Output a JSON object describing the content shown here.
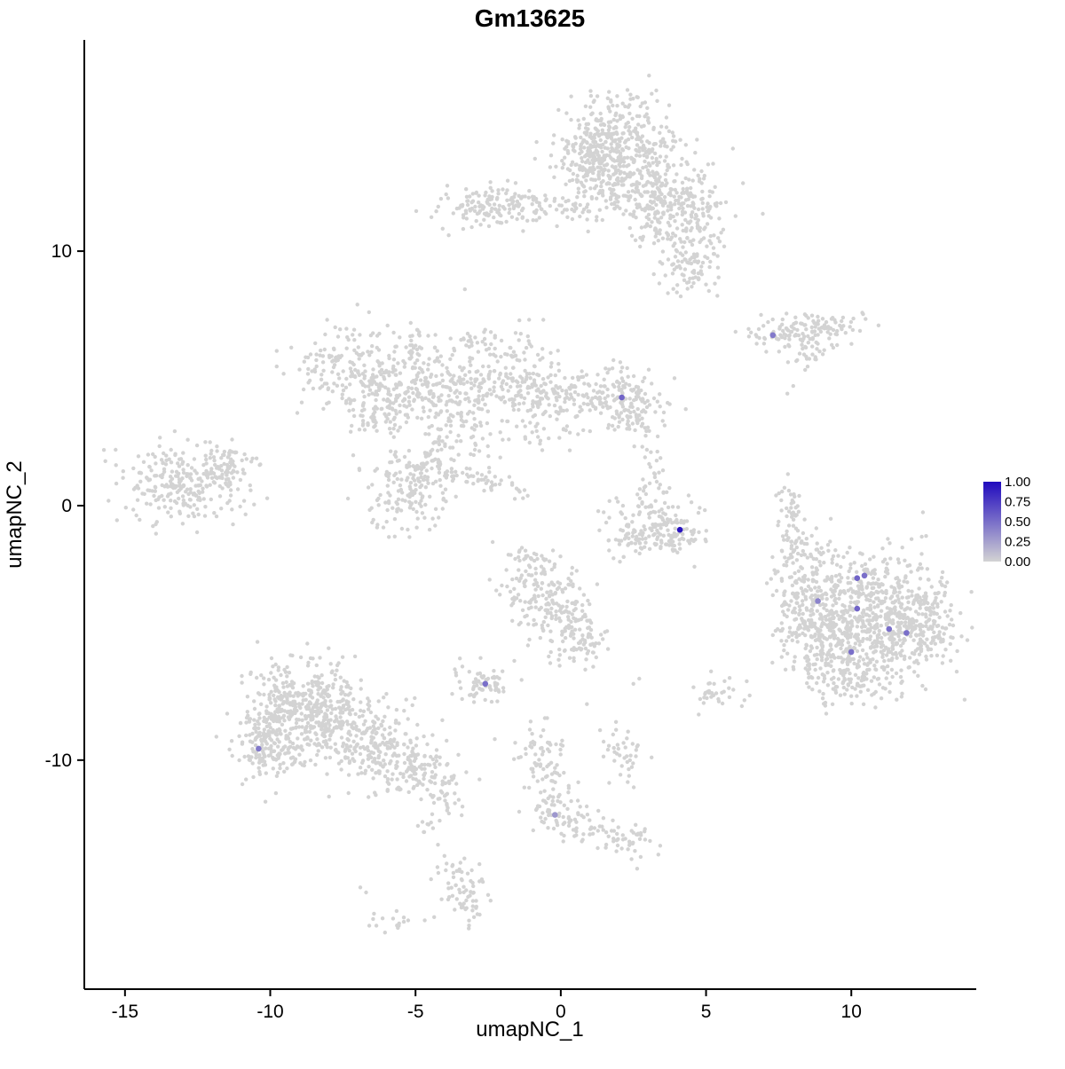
{
  "chart_data": {
    "type": "scatter",
    "title": "Gm13625",
    "xlabel": "umapNC_1",
    "ylabel": "umapNC_2",
    "x_ticks": [
      -15,
      -10,
      -5,
      0,
      5,
      10
    ],
    "y_ticks": [
      -10,
      0,
      10
    ],
    "x_range": [
      -16.4,
      14.3
    ],
    "y_range": [
      -19.0,
      18.3
    ],
    "grid": false,
    "legend": {
      "position": "right",
      "labels": [
        "1.00",
        "0.75",
        "0.50",
        "0.25",
        "0.00"
      ],
      "low_color": "#D3D3D3",
      "high_color": "#200ABE"
    },
    "base_point_color": "#D3D3D3",
    "clusters": [
      [
        1.9,
        14.3,
        1.0,
        0.9,
        330,
        0
      ],
      [
        2.4,
        12.7,
        1.3,
        0.8,
        240,
        0
      ],
      [
        1.0,
        13.6,
        0.6,
        0.9,
        90,
        0
      ],
      [
        3.9,
        11.9,
        0.9,
        0.5,
        110,
        0
      ],
      [
        4.7,
        10.6,
        0.5,
        0.7,
        80,
        0
      ],
      [
        4.4,
        9.2,
        0.5,
        0.5,
        60,
        0
      ],
      [
        3.3,
        10.9,
        0.4,
        0.4,
        40,
        0
      ],
      [
        -2.6,
        11.7,
        0.8,
        0.45,
        110,
        0
      ],
      [
        -1.3,
        11.9,
        0.5,
        0.35,
        45,
        0
      ],
      [
        0.2,
        11.6,
        0.6,
        0.25,
        25,
        0
      ],
      [
        7.8,
        6.7,
        0.8,
        0.28,
        75,
        0
      ],
      [
        9.0,
        7.0,
        0.7,
        0.38,
        70,
        0
      ],
      [
        8.6,
        5.9,
        0.4,
        0.22,
        20,
        0
      ],
      [
        -7.3,
        5.4,
        0.9,
        0.8,
        170,
        0
      ],
      [
        -5.7,
        4.3,
        0.8,
        0.7,
        120,
        0
      ],
      [
        -4.3,
        4.9,
        0.7,
        0.6,
        90,
        0
      ],
      [
        -3.3,
        3.7,
        0.7,
        0.8,
        110,
        0
      ],
      [
        -1.7,
        5.0,
        0.8,
        0.8,
        140,
        0
      ],
      [
        -0.7,
        4.0,
        0.6,
        0.8,
        100,
        0
      ],
      [
        -5.1,
        6.4,
        0.4,
        0.4,
        35,
        0
      ],
      [
        -2.9,
        6.4,
        0.35,
        0.3,
        25,
        0
      ],
      [
        -6.5,
        3.4,
        0.4,
        0.4,
        30,
        0
      ],
      [
        1.8,
        4.3,
        0.85,
        0.55,
        130,
        0
      ],
      [
        2.6,
        3.5,
        0.5,
        0.5,
        55,
        0
      ],
      [
        0.5,
        4.4,
        0.5,
        0.5,
        35,
        0
      ],
      [
        -5.3,
        0.7,
        0.8,
        0.8,
        150,
        0
      ],
      [
        -4.4,
        1.6,
        0.5,
        0.5,
        55,
        0
      ],
      [
        -2.5,
        0.9,
        0.9,
        0.22,
        45,
        -18
      ],
      [
        -13.0,
        0.9,
        1.1,
        0.75,
        260,
        0
      ],
      [
        -11.5,
        1.5,
        0.5,
        0.45,
        55,
        0
      ],
      [
        3.0,
        -0.6,
        0.8,
        0.5,
        85,
        0
      ],
      [
        3.9,
        -1.15,
        0.55,
        0.4,
        65,
        0
      ],
      [
        2.5,
        -1.4,
        0.4,
        0.4,
        40,
        0
      ],
      [
        3.2,
        0.6,
        0.3,
        0.45,
        22,
        0
      ],
      [
        3.1,
        1.8,
        0.2,
        0.3,
        6,
        0
      ],
      [
        7.9,
        -0.3,
        0.22,
        0.8,
        45,
        0
      ],
      [
        8.1,
        -1.6,
        0.3,
        0.4,
        22,
        0
      ],
      [
        10.6,
        -3.6,
        1.3,
        1.0,
        360,
        0
      ],
      [
        11.5,
        -5.0,
        1.0,
        0.9,
        270,
        0
      ],
      [
        9.3,
        -5.5,
        0.9,
        0.9,
        210,
        0
      ],
      [
        8.5,
        -4.2,
        0.6,
        0.8,
        110,
        0
      ],
      [
        12.6,
        -4.5,
        0.5,
        0.7,
        85,
        0
      ],
      [
        10.2,
        -6.9,
        0.8,
        0.5,
        100,
        0
      ],
      [
        8.0,
        -2.9,
        0.5,
        0.6,
        45,
        0
      ],
      [
        8.9,
        -1.9,
        0.3,
        0.4,
        20,
        0
      ],
      [
        -0.7,
        -3.3,
        0.7,
        0.8,
        120,
        0
      ],
      [
        0.2,
        -4.5,
        0.6,
        0.7,
        95,
        0
      ],
      [
        0.8,
        -5.6,
        0.4,
        0.5,
        45,
        0
      ],
      [
        -1.0,
        -2.3,
        0.4,
        0.4,
        28,
        0
      ],
      [
        -2.7,
        -7.0,
        0.55,
        0.4,
        65,
        0
      ],
      [
        5.3,
        -7.3,
        0.35,
        0.45,
        32,
        0
      ],
      [
        -8.8,
        -7.6,
        1.0,
        0.9,
        270,
        0
      ],
      [
        -7.6,
        -8.8,
        1.1,
        0.9,
        250,
        0
      ],
      [
        -9.8,
        -8.9,
        0.7,
        0.8,
        150,
        0
      ],
      [
        -6.0,
        -9.8,
        0.9,
        0.7,
        140,
        0
      ],
      [
        -4.8,
        -10.6,
        0.7,
        0.5,
        85,
        0
      ],
      [
        -10.3,
        -9.7,
        0.4,
        0.45,
        55,
        0
      ],
      [
        -4.0,
        -11.6,
        0.4,
        0.3,
        18,
        0
      ],
      [
        -4.6,
        -12.6,
        0.25,
        0.25,
        9,
        0
      ],
      [
        -0.9,
        -9.5,
        0.4,
        0.5,
        42,
        0
      ],
      [
        -0.4,
        -10.8,
        0.3,
        0.6,
        38,
        0
      ],
      [
        -0.1,
        -12.2,
        0.45,
        0.4,
        55,
        0
      ],
      [
        0.9,
        -12.6,
        0.4,
        0.3,
        28,
        0
      ],
      [
        2.3,
        -13.0,
        0.5,
        0.4,
        45,
        0
      ],
      [
        2.2,
        -9.8,
        0.4,
        0.5,
        38,
        0
      ],
      [
        -3.5,
        -14.7,
        0.4,
        0.6,
        55,
        0
      ],
      [
        -3.3,
        -15.9,
        0.3,
        0.3,
        18,
        0
      ],
      [
        -5.8,
        -16.4,
        0.35,
        0.25,
        16,
        0
      ]
    ],
    "singles": [
      [
        -3.3,
        8.5
      ],
      [
        -7.0,
        7.9
      ],
      [
        -6.6,
        7.6
      ],
      [
        -0.6,
        7.3
      ],
      [
        2.9,
        1.9
      ],
      [
        3.1,
        2.1
      ],
      [
        4.4,
        0.4
      ],
      [
        8.0,
        4.7
      ],
      [
        7.8,
        4.4
      ],
      [
        2.5,
        -7.0
      ],
      [
        2.7,
        -6.8
      ],
      [
        4.6,
        -2.4
      ],
      [
        -1.6,
        -6.1
      ],
      [
        -6.9,
        -15.0
      ],
      [
        -6.7,
        -15.2
      ],
      [
        1.9,
        -8.5
      ],
      [
        0.9,
        -7.8
      ],
      [
        6.4,
        -6.9
      ]
    ],
    "expressing_cells": [
      {
        "x": 7.3,
        "y": 6.7,
        "value": 0.45
      },
      {
        "x": 2.1,
        "y": 4.25,
        "value": 0.55
      },
      {
        "x": 4.1,
        "y": -0.95,
        "value": 0.95
      },
      {
        "x": 10.2,
        "y": -2.85,
        "value": 0.55
      },
      {
        "x": 10.45,
        "y": -2.75,
        "value": 0.5
      },
      {
        "x": 8.85,
        "y": -3.75,
        "value": 0.4
      },
      {
        "x": 10.2,
        "y": -4.05,
        "value": 0.55
      },
      {
        "x": 11.3,
        "y": -4.85,
        "value": 0.5
      },
      {
        "x": 11.9,
        "y": -5.0,
        "value": 0.5
      },
      {
        "x": 10.0,
        "y": -5.75,
        "value": 0.5
      },
      {
        "x": -2.6,
        "y": -7.0,
        "value": 0.5
      },
      {
        "x": -10.4,
        "y": -9.55,
        "value": 0.45
      },
      {
        "x": -0.2,
        "y": -12.15,
        "value": 0.3
      }
    ]
  }
}
